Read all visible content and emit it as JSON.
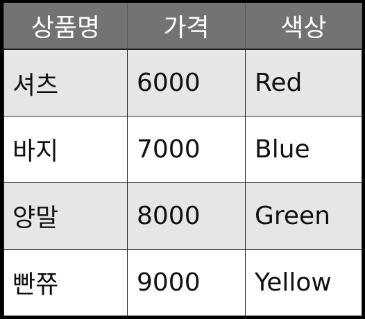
{
  "table": {
    "headers": [
      "상품명",
      "가격",
      "색상"
    ],
    "rows": [
      {
        "name": "셔츠",
        "price": "6000",
        "color": "Red"
      },
      {
        "name": "바지",
        "price": "7000",
        "color": "Blue"
      },
      {
        "name": "양말",
        "price": "8000",
        "color": "Green"
      },
      {
        "name": "빤쮸",
        "price": "9000",
        "color": "Yellow"
      }
    ]
  },
  "colors": {
    "header_bg": "#737373",
    "header_text": "#ffffff",
    "row_alt_bg": "#e6e6e6",
    "row_bg": "#ffffff",
    "border": "#222222",
    "frame": "#000000"
  }
}
